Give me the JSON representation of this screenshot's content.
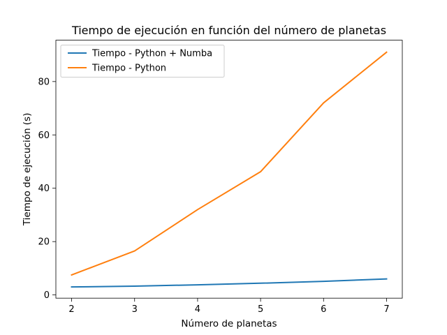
{
  "chart_data": {
    "type": "line",
    "title": "Tiempo de ejecución en función del número de planetas",
    "xlabel": "Número de planetas",
    "ylabel": "Tiempo de ejecución (s)",
    "x": [
      2,
      3,
      4,
      5,
      6,
      7
    ],
    "xlim": [
      1.75,
      7.25
    ],
    "ylim": [
      -1.2,
      95.5
    ],
    "xticks": [
      2,
      3,
      4,
      5,
      6,
      7
    ],
    "yticks": [
      0,
      20,
      40,
      60,
      80
    ],
    "grid": false,
    "legend_position": "top-left",
    "series": [
      {
        "name": "Tiempo - Python + Numba",
        "color": "#1f77b4",
        "values": [
          3.0,
          3.3,
          3.8,
          4.4,
          5.1,
          6.0
        ]
      },
      {
        "name": "Tiempo - Python",
        "color": "#ff7f0e",
        "values": [
          7.5,
          16.5,
          32.0,
          46.2,
          72.0,
          91.0
        ]
      }
    ]
  }
}
